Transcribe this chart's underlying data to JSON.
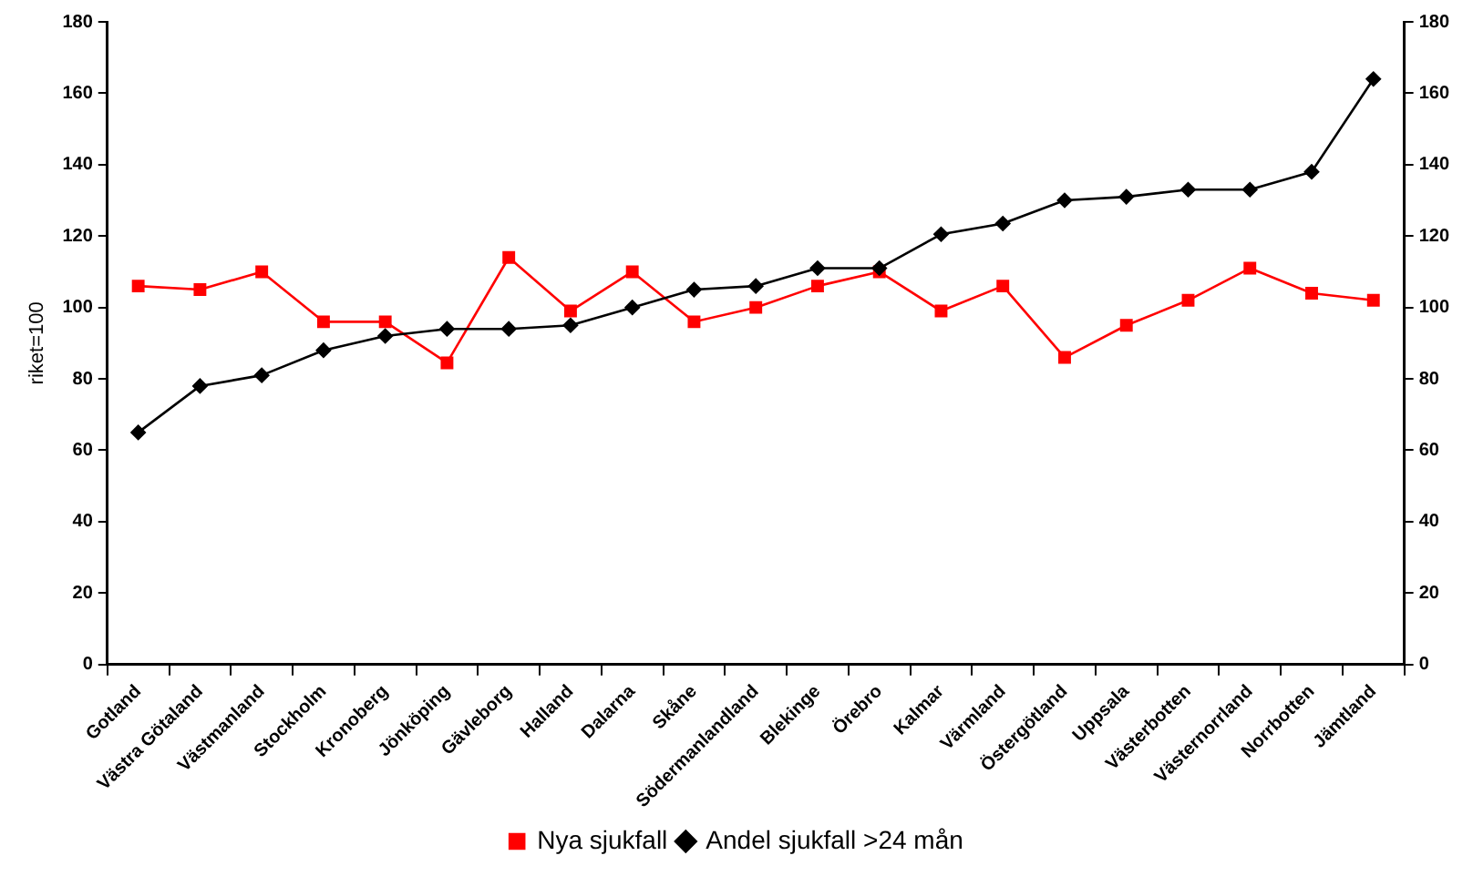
{
  "chart_data": {
    "type": "line",
    "ylabel": "riket=100",
    "categories": [
      "Gotland",
      "Västra Götaland",
      "Västmanland",
      "Stockholm",
      "Kronoberg",
      "Jönköping",
      "Gävleborg",
      "Halland",
      "Dalarna",
      "Skåne",
      "Södermanlandland",
      "Blekinge",
      "Örebro",
      "Kalmar",
      "Värmland",
      "Östergötland",
      "Uppsala",
      "Västerbotten",
      "Västernorrland",
      "Norrbotten",
      "Jämtland"
    ],
    "series": [
      {
        "name": "Nya sjukfall",
        "color": "#ff0000",
        "marker": "square",
        "values": [
          106,
          105,
          110,
          96,
          96,
          84.5,
          114,
          99,
          110,
          96,
          100,
          106,
          110,
          99,
          106,
          86,
          95,
          102,
          111,
          104,
          102
        ]
      },
      {
        "name": "Andel sjukfall >24 mån",
        "color": "#000000",
        "marker": "diamond",
        "values": [
          65,
          78,
          81,
          88,
          92,
          94,
          94,
          95,
          100,
          105,
          106,
          111,
          111,
          120.5,
          123.5,
          130,
          131,
          133,
          133,
          138,
          164
        ]
      }
    ],
    "ylim": [
      0,
      180
    ],
    "yticks": [
      0,
      20,
      40,
      60,
      80,
      100,
      120,
      140,
      160,
      180
    ],
    "y2lim": [
      0,
      180
    ],
    "y2ticks": [
      0,
      20,
      40,
      60,
      80,
      100,
      120,
      140,
      160,
      180
    ],
    "grid": false,
    "legend": "bottom"
  }
}
